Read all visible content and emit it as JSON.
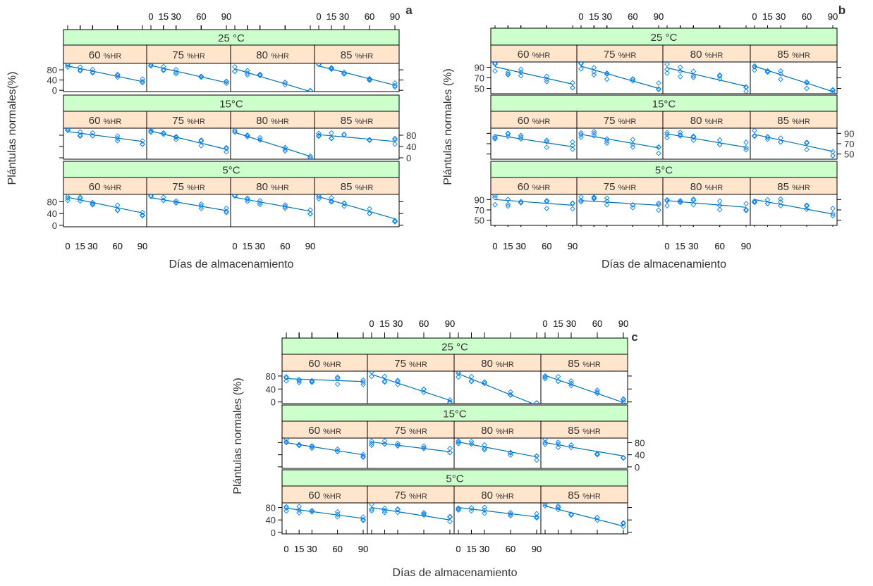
{
  "axis_text": {
    "xlabel": "Días de almacenamiento",
    "ylabel_a": "Plántulas normales(%)",
    "ylabel_b": "Plántulas normales (%)",
    "ylabel_c": "Plántulas normales (%)"
  },
  "x_ticks": [
    "0",
    "15",
    "30",
    "60",
    "90"
  ],
  "hr_unit": "%HR",
  "panel_labels": [
    "a",
    "b",
    "c"
  ],
  "temperatures": [
    "25 °C",
    "15°C",
    "5°C"
  ],
  "hr_levels": [
    "60",
    "75",
    "80",
    "85"
  ],
  "colors": {
    "strip_temp": "#ccffcc",
    "strip_hr": "#ffe5cc",
    "points": "#0080ff",
    "line": "#0072b2",
    "frame": "#000000"
  },
  "chart_data": [
    {
      "type": "scatter",
      "panel": "a",
      "xlabel": "Días de almacenamiento",
      "ylabel": "Plántulas normales(%)",
      "x_ticks": [
        0,
        15,
        30,
        60,
        90
      ],
      "y_ticks": [
        0,
        40,
        80
      ],
      "ylim": [
        -5,
        105
      ],
      "x": [
        0,
        15,
        30,
        60,
        90
      ],
      "fits": {
        "25": {
          "60": [
            95,
            34
          ],
          "75": [
            97,
            30
          ],
          "80": [
            84,
            -5
          ],
          "85": [
            95,
            20
          ]
        },
        "15": {
          "60": [
            93,
            58
          ],
          "75": [
            95,
            30
          ],
          "80": [
            90,
            5
          ],
          "85": [
            82,
            58
          ]
        },
        "5": {
          "60": [
            95,
            42
          ],
          "75": [
            94,
            50
          ],
          "80": [
            95,
            48
          ],
          "85": [
            97,
            22
          ]
        }
      }
    },
    {
      "type": "scatter",
      "panel": "b",
      "xlabel": "Días de almacenamiento",
      "ylabel": "Plántulas normales (%)",
      "x_ticks": [
        0,
        15,
        30,
        60,
        90
      ],
      "y_ticks": [
        50,
        70,
        90
      ],
      "ylim": [
        40,
        100
      ],
      "x": [
        0,
        15,
        30,
        60,
        90
      ],
      "fits": {
        "25": {
          "60": [
            91,
            58
          ],
          "75": [
            92,
            50
          ],
          "80": [
            89,
            54
          ],
          "85": [
            92,
            44
          ]
        },
        "15": {
          "60": [
            87,
            64
          ],
          "75": [
            88,
            62
          ],
          "80": [
            89,
            63
          ],
          "85": [
            88,
            55
          ]
        },
        "5": {
          "60": [
            90,
            79
          ],
          "75": [
            88,
            79
          ],
          "80": [
            88,
            75
          ],
          "85": [
            90,
            62
          ]
        }
      }
    },
    {
      "type": "scatter",
      "panel": "c",
      "xlabel": "Días de almacenamiento",
      "ylabel": "Plántulas normales (%)",
      "x_ticks": [
        0,
        15,
        30,
        60,
        90
      ],
      "y_ticks": [
        0,
        40,
        80
      ],
      "ylim": [
        -5,
        95
      ],
      "x": [
        0,
        15,
        30,
        60,
        90
      ],
      "fits": {
        "25": {
          "60": [
            72,
            63
          ],
          "75": [
            85,
            5
          ],
          "80": [
            87,
            -10
          ],
          "85": [
            82,
            -2
          ]
        },
        "15": {
          "60": [
            80,
            40
          ],
          "75": [
            82,
            50
          ],
          "80": [
            82,
            33
          ],
          "85": [
            80,
            36
          ]
        },
        "5": {
          "60": [
            78,
            45
          ],
          "75": [
            80,
            40
          ],
          "80": [
            80,
            50
          ],
          "85": [
            85,
            20
          ]
        }
      }
    }
  ]
}
